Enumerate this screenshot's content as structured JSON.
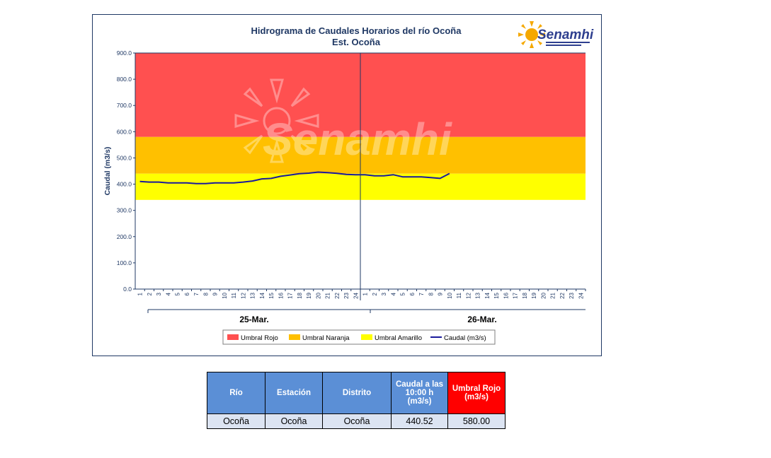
{
  "chart_data": {
    "type": "line",
    "title": "Hidrograma de Caudales Horarios del río Ocoña",
    "subtitle": "Est. Ocoña",
    "ylabel": "Caudal (m3/s)",
    "ylim": [
      0,
      900
    ],
    "yticks": [
      "0.0",
      "100.0",
      "200.0",
      "300.0",
      "400.0",
      "500.0",
      "600.0",
      "700.0",
      "800.0",
      "900.0"
    ],
    "day_labels": [
      "25-Mar.",
      "26-Mar."
    ],
    "hour_ticks": [
      "1",
      "2",
      "3",
      "4",
      "5",
      "6",
      "7",
      "8",
      "9",
      "10",
      "11",
      "12",
      "13",
      "14",
      "15",
      "16",
      "17",
      "18",
      "19",
      "20",
      "21",
      "22",
      "23",
      "24"
    ],
    "thresholds": [
      {
        "name": "Umbral Rojo",
        "from": 580,
        "to": 900,
        "color": "#ff5050"
      },
      {
        "name": "Umbral Naranja",
        "from": 440,
        "to": 580,
        "color": "#ffc000"
      },
      {
        "name": "Umbral Amarillo",
        "from": 340,
        "to": 440,
        "color": "#ffff00"
      }
    ],
    "series": [
      {
        "name": "Caudal (m3/s)",
        "color": "#1a1a9c",
        "values": [
          410,
          408,
          408,
          405,
          405,
          405,
          402,
          402,
          405,
          405,
          405,
          408,
          412,
          420,
          422,
          430,
          435,
          440,
          442,
          446,
          444,
          441,
          437,
          436,
          436,
          432,
          432,
          436,
          428,
          428,
          428,
          425,
          422,
          440.52
        ]
      }
    ],
    "legend_position": "bottom"
  },
  "logo": {
    "text": "Senamhi",
    "watermark": "Senamhi"
  },
  "table": {
    "headers": [
      "Río",
      "Estación",
      "Distrito",
      "Caudal  a las 10:00 h (m3/s)",
      "Umbral Rojo (m3/s)"
    ],
    "row": [
      "Ocoña",
      "Ocoña",
      "Ocoña",
      "440.52",
      "580.00"
    ]
  },
  "colors": {
    "navy": "#1f3864",
    "header_blue": "#5b8fd6",
    "header_red": "#ff0000",
    "cell_bg": "#dce4f2"
  }
}
